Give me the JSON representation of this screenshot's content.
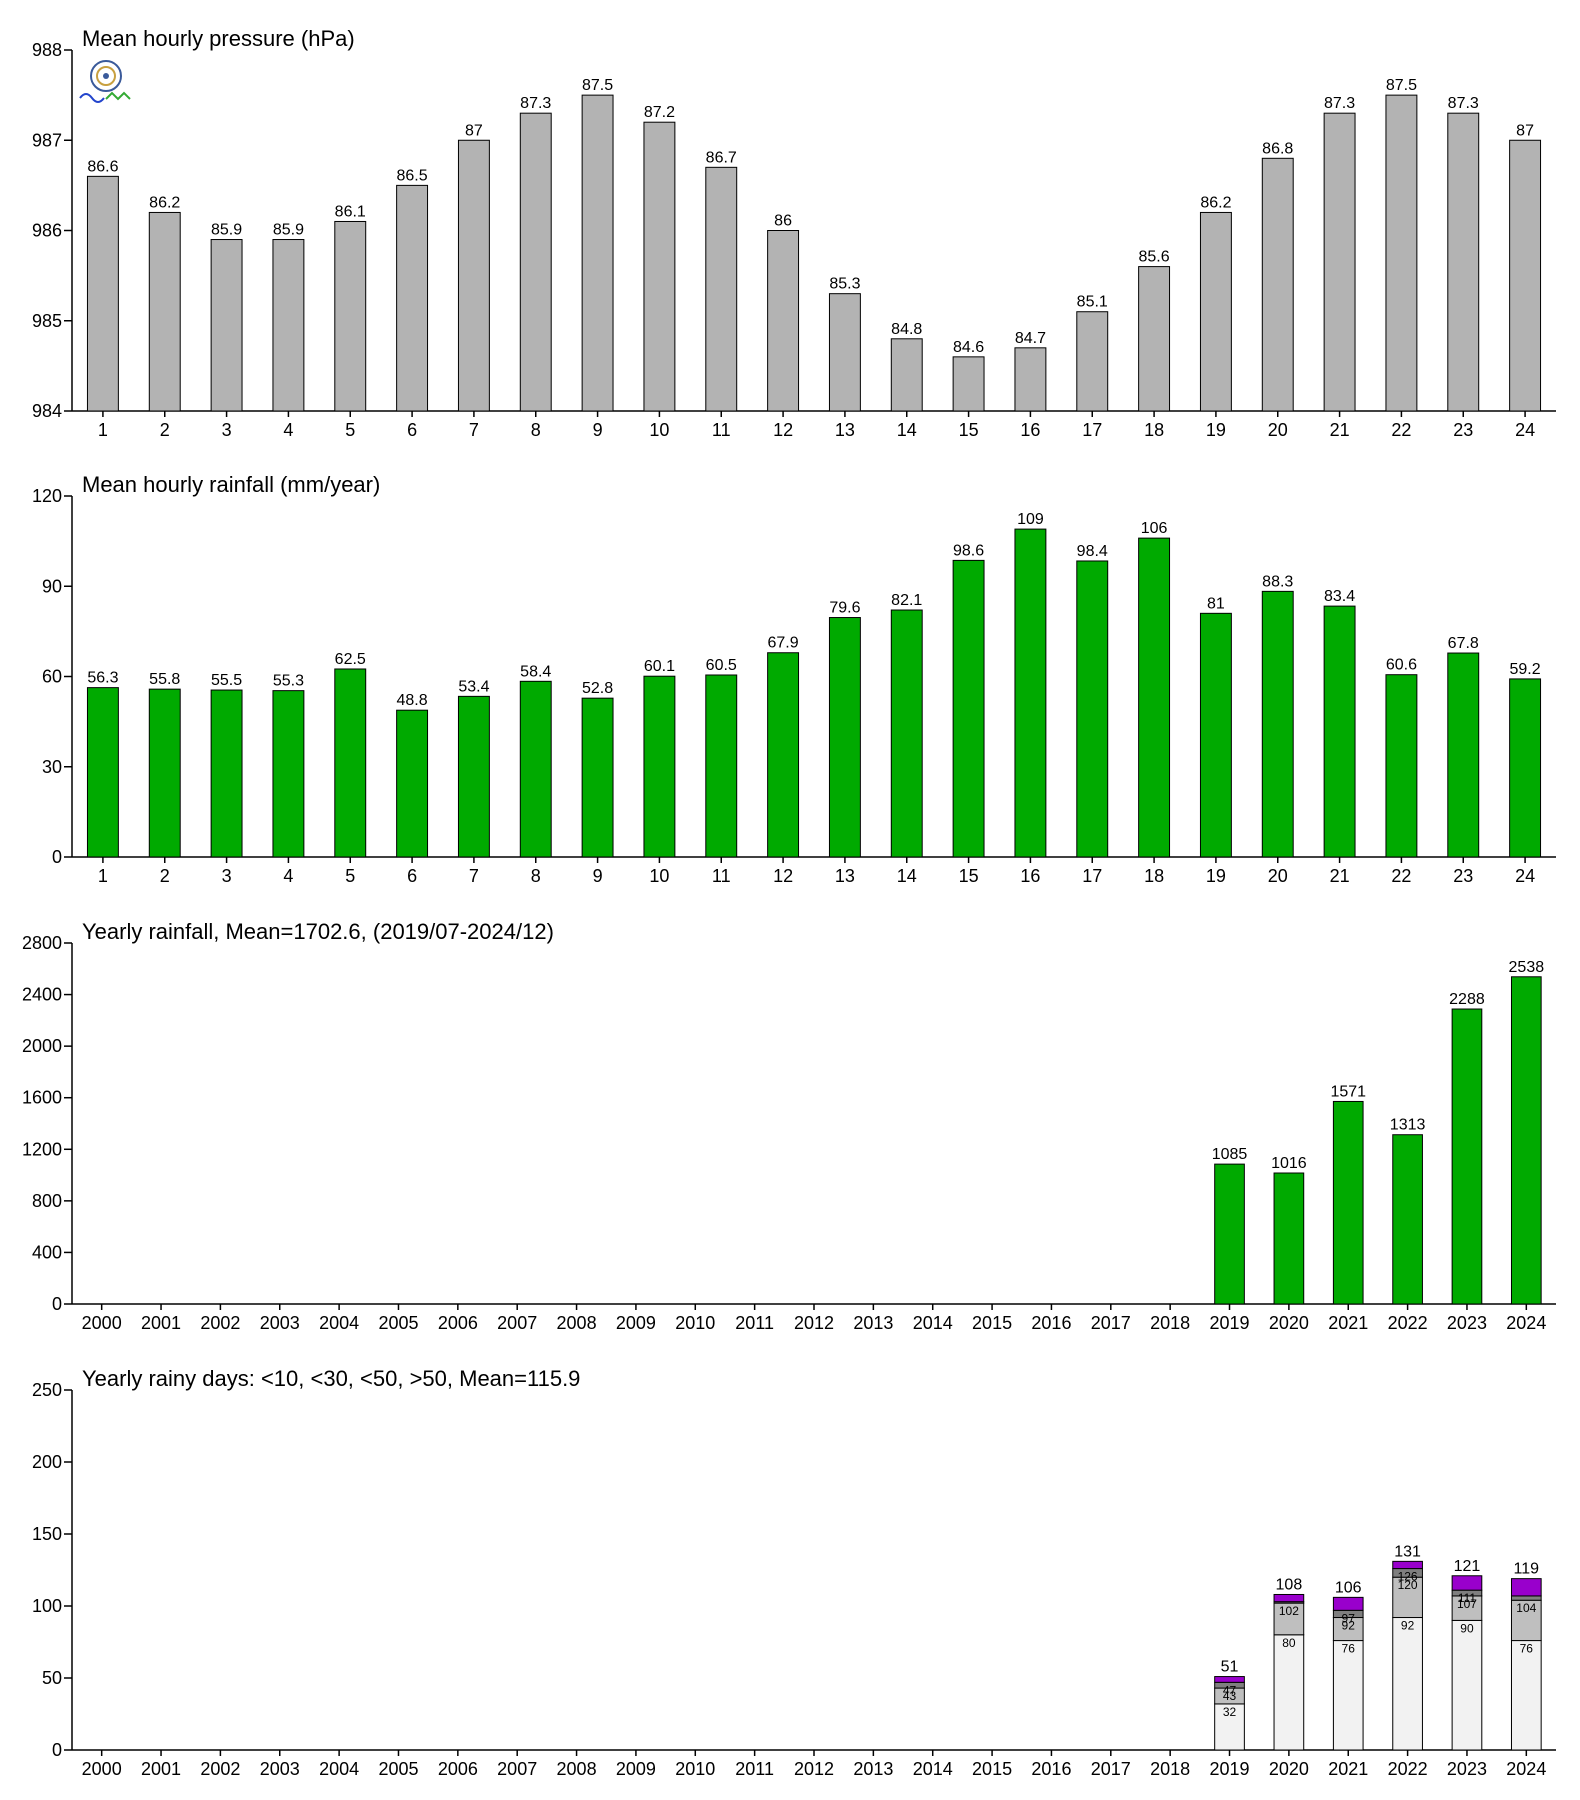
{
  "chart_data": [
    {
      "type": "bar",
      "title": "Mean hourly pressure (hPa)",
      "categories": [
        "1",
        "2",
        "3",
        "4",
        "5",
        "6",
        "7",
        "8",
        "9",
        "10",
        "11",
        "12",
        "13",
        "14",
        "15",
        "16",
        "17",
        "18",
        "19",
        "20",
        "21",
        "22",
        "23",
        "24"
      ],
      "values": [
        986.6,
        986.2,
        985.9,
        985.9,
        986.1,
        986.5,
        987.0,
        987.3,
        987.5,
        987.2,
        986.7,
        986.0,
        985.3,
        984.8,
        984.6,
        984.7,
        985.1,
        985.6,
        986.2,
        986.8,
        987.3,
        987.5,
        987.3,
        987.0
      ],
      "labels": [
        "86.6",
        "86.2",
        "85.9",
        "85.9",
        "86.1",
        "86.5",
        "87",
        "87.3",
        "87.5",
        "87.2",
        "86.7",
        "86",
        "85.3",
        "84.8",
        "84.6",
        "84.7",
        "85.1",
        "85.6",
        "86.2",
        "86.8",
        "87.3",
        "87.5",
        "87.3",
        "87"
      ],
      "ylim": [
        984,
        988
      ],
      "yticks": [
        "984",
        "985",
        "986",
        "987",
        "988"
      ],
      "color": "#b3b3b3"
    },
    {
      "type": "bar",
      "title": "Mean hourly rainfall (mm/year)",
      "categories": [
        "1",
        "2",
        "3",
        "4",
        "5",
        "6",
        "7",
        "8",
        "9",
        "10",
        "11",
        "12",
        "13",
        "14",
        "15",
        "16",
        "17",
        "18",
        "19",
        "20",
        "21",
        "22",
        "23",
        "24"
      ],
      "values": [
        56.3,
        55.8,
        55.5,
        55.3,
        62.5,
        48.8,
        53.4,
        58.4,
        52.8,
        60.1,
        60.5,
        67.9,
        79.6,
        82.1,
        98.6,
        109,
        98.4,
        106,
        81,
        88.3,
        83.4,
        60.6,
        67.8,
        59.2
      ],
      "labels": [
        "56.3",
        "55.8",
        "55.5",
        "55.3",
        "62.5",
        "48.8",
        "53.4",
        "58.4",
        "52.8",
        "60.1",
        "60.5",
        "67.9",
        "79.6",
        "82.1",
        "98.6",
        "109",
        "98.4",
        "106",
        "81",
        "88.3",
        "83.4",
        "60.6",
        "67.8",
        "59.2"
      ],
      "ylim": [
        0,
        120
      ],
      "yticks": [
        "0",
        "30",
        "60",
        "90",
        "120"
      ],
      "color": "#00aa00"
    },
    {
      "type": "bar",
      "title": "Yearly rainfall, Mean=1702.6, (2019/07-2024/12)",
      "categories": [
        "2000",
        "2001",
        "2002",
        "2003",
        "2004",
        "2005",
        "2006",
        "2007",
        "2008",
        "2009",
        "2010",
        "2011",
        "2012",
        "2013",
        "2014",
        "2015",
        "2016",
        "2017",
        "2018",
        "2019",
        "2020",
        "2021",
        "2022",
        "2023",
        "2024"
      ],
      "values": [
        null,
        null,
        null,
        null,
        null,
        null,
        null,
        null,
        null,
        null,
        null,
        null,
        null,
        null,
        null,
        null,
        null,
        null,
        null,
        1085,
        1016,
        1571,
        1313,
        2288,
        2538
      ],
      "labels": [
        "",
        "",
        "",
        "",
        "",
        "",
        "",
        "",
        "",
        "",
        "",
        "",
        "",
        "",
        "",
        "",
        "",
        "",
        "",
        "1085",
        "1016",
        "1571",
        "1313",
        "2288",
        "2538"
      ],
      "ylim": [
        0,
        2800
      ],
      "yticks": [
        "0",
        "400",
        "800",
        "1200",
        "1600",
        "2000",
        "2400",
        "2800"
      ],
      "color": "#00aa00"
    },
    {
      "type": "bar",
      "stacked": true,
      "title": "Yearly rainy days: <10, <30, <50, >50, Mean=115.9",
      "categories": [
        "2000",
        "2001",
        "2002",
        "2003",
        "2004",
        "2005",
        "2006",
        "2007",
        "2008",
        "2009",
        "2010",
        "2011",
        "2012",
        "2013",
        "2014",
        "2015",
        "2016",
        "2017",
        "2018",
        "2019",
        "2020",
        "2021",
        "2022",
        "2023",
        "2024"
      ],
      "cumulative": [
        null,
        null,
        null,
        null,
        null,
        null,
        null,
        null,
        null,
        null,
        null,
        null,
        null,
        null,
        null,
        null,
        null,
        null,
        null,
        [
          32,
          43,
          47,
          51
        ],
        [
          80,
          102,
          103,
          108
        ],
        [
          76,
          92,
          97,
          106
        ],
        [
          92,
          120,
          126,
          131
        ],
        [
          90,
          107,
          111,
          121
        ],
        [
          76,
          104,
          107,
          119
        ]
      ],
      "segment_labels": [
        null,
        null,
        null,
        null,
        null,
        null,
        null,
        null,
        null,
        null,
        null,
        null,
        null,
        null,
        null,
        null,
        null,
        null,
        null,
        [
          "32",
          "43",
          "47",
          ""
        ],
        [
          "80",
          "102",
          "",
          ""
        ],
        [
          "76",
          "92",
          "97",
          ""
        ],
        [
          "92",
          "120",
          "126",
          ""
        ],
        [
          "90",
          "107",
          "111",
          ""
        ],
        [
          "76",
          "104",
          "",
          ""
        ]
      ],
      "totals": [
        "",
        "",
        "",
        "",
        "",
        "",
        "",
        "",
        "",
        "",
        "",
        "",
        "",
        "",
        "",
        "",
        "",
        "",
        "",
        "51",
        "108",
        "106",
        "131",
        "121",
        "119"
      ],
      "ylim": [
        0,
        250
      ],
      "yticks": [
        "0",
        "50",
        "100",
        "150",
        "200",
        "250"
      ],
      "segment_colors": [
        "#f2f2f2",
        "#bfbfbf",
        "#7f7f7f",
        "#9900cc"
      ]
    }
  ]
}
